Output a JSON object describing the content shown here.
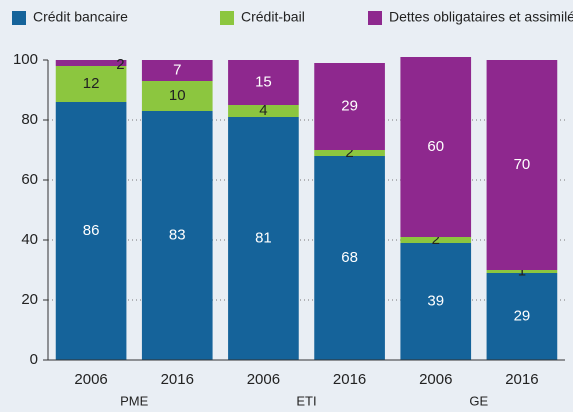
{
  "chart_data": {
    "type": "stacked_bar",
    "categories": [
      "2006",
      "2016",
      "2006",
      "2016",
      "2006",
      "2016"
    ],
    "group_labels": [
      "PME",
      "ETI",
      "GE"
    ],
    "series": [
      {
        "name": "Crédit bancaire",
        "color": "#15639a",
        "values": [
          86,
          83,
          81,
          68,
          39,
          29
        ]
      },
      {
        "name": "Crédit-bail",
        "color": "#8cc63f",
        "values": [
          12,
          10,
          4,
          2,
          2,
          1
        ]
      },
      {
        "name": "Dettes obligataires et assimilées",
        "color": "#8e288e",
        "values": [
          2,
          7,
          15,
          29,
          60,
          70
        ]
      }
    ],
    "ylim": [
      0,
      100
    ],
    "yticks": [
      0,
      20,
      40,
      60,
      80,
      100
    ],
    "grid": true
  }
}
